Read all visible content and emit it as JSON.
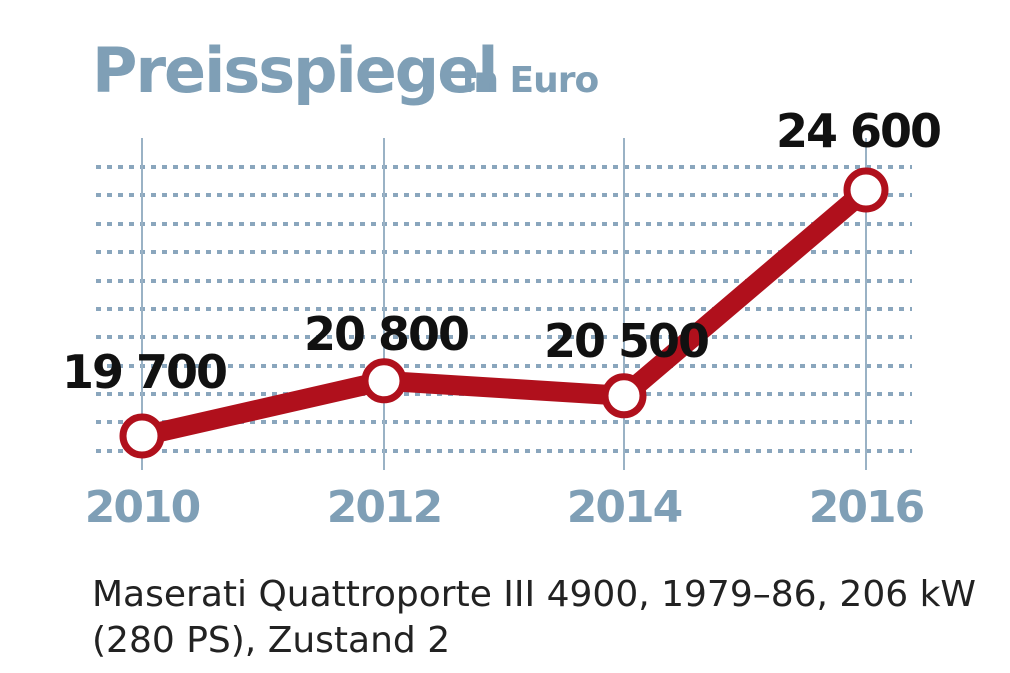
{
  "chart_data": {
    "type": "line",
    "title": "Preisspiegel",
    "subtitle": "in Euro",
    "x": [
      "2010",
      "2012",
      "2014",
      "2016"
    ],
    "series": [
      {
        "values": [
          19700,
          20800,
          20500,
          24600
        ],
        "labels": [
          "19 700",
          "20 800",
          "20 500",
          "24 600"
        ]
      }
    ],
    "grid": true,
    "xlabel": "",
    "ylabel": ""
  },
  "caption": {
    "line1": "Maserati Quattroporte III 4900, 1979–86, 206 kW",
    "line2": "(280 PS), Zustand 2"
  },
  "colors": {
    "line": "#b0101c",
    "accent": "#7f9fb6",
    "grid": "#8aa6bd"
  }
}
